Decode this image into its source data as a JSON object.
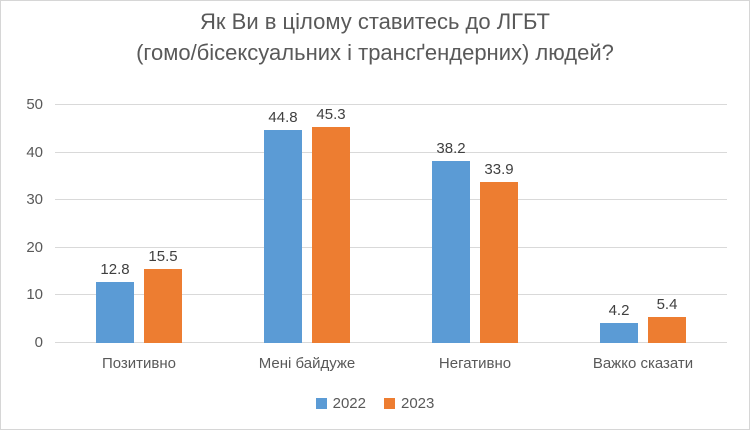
{
  "figure": {
    "title_lines": [
      "Як Ви в цілому ставитесь до ЛГБТ",
      "(гомо/бісексуальних і трансґендерних) людей?"
    ]
  },
  "chart_data": {
    "type": "bar",
    "title": "Як Ви в цілому ставитесь до ЛГБТ (гомо/бісексуальних і трансґендерних) людей?",
    "categories": [
      "Позитивно",
      "Мені байдуже",
      "Негативно",
      "Важко сказати"
    ],
    "series": [
      {
        "name": "2022",
        "color": "#5B9BD5",
        "values": [
          12.8,
          44.8,
          38.2,
          4.2
        ]
      },
      {
        "name": "2023",
        "color": "#ED7D31",
        "values": [
          15.5,
          45.3,
          33.9,
          5.4
        ]
      }
    ],
    "ylim": [
      0,
      50
    ],
    "yticks": [
      0,
      10,
      20,
      30,
      40,
      50
    ],
    "grid": true,
    "legend_position": "bottom",
    "data_labels": true,
    "colors": {
      "gridline": "#D9D9D9",
      "axis_text": "#595959",
      "data_label_text": "#404040",
      "background": "#FFFFFF",
      "border": "#D6D6D6"
    }
  }
}
